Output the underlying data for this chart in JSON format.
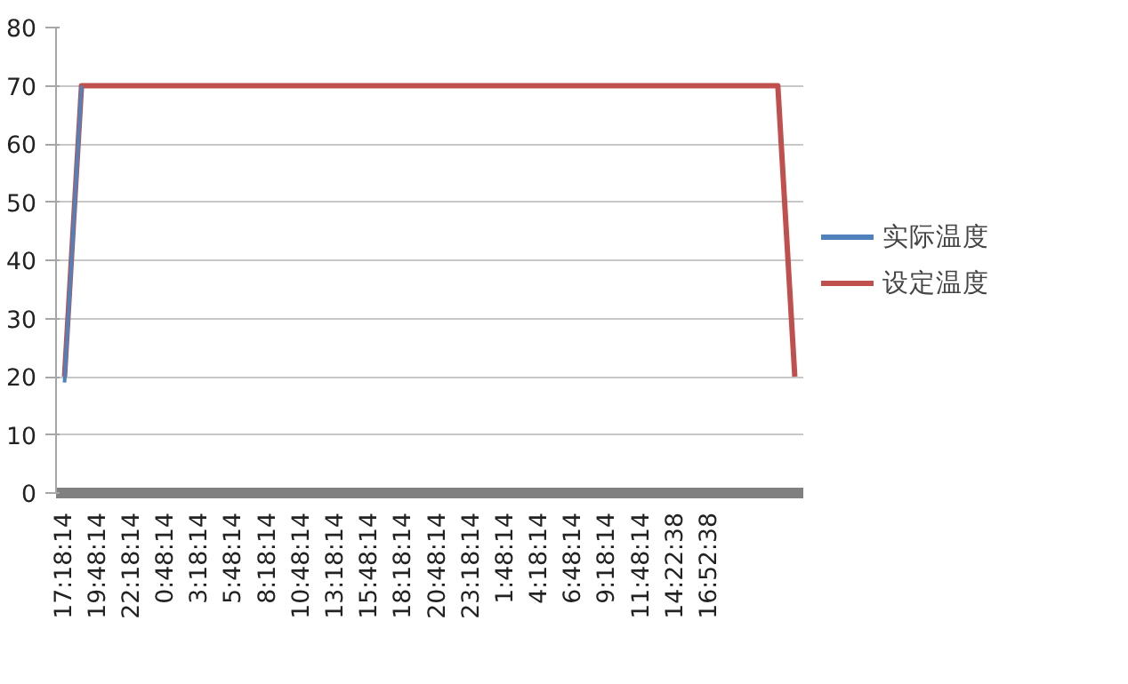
{
  "chart_data": {
    "type": "line",
    "categories": [
      "17:18:14",
      null,
      "19:48:14",
      null,
      "22:18:14",
      null,
      "0:48:14",
      null,
      "3:18:14",
      null,
      "5:48:14",
      null,
      "8:18:14",
      null,
      "10:48:14",
      null,
      "13:18:14",
      null,
      "15:48:14",
      null,
      "18:18:14",
      null,
      "20:48:14",
      null,
      "23:18:14",
      null,
      "1:48:14",
      null,
      "4:18:14",
      null,
      "6:48:14",
      null,
      "9:18:14",
      null,
      "11:48:14",
      null,
      "14:22:38",
      null,
      "16:52:38",
      null,
      null,
      null,
      null,
      null
    ],
    "series": [
      {
        "name": "实际温度",
        "color": "#4f81bd",
        "values": [
          19,
          70,
          null,
          null,
          null,
          null,
          null,
          null,
          null,
          null,
          null,
          null,
          null,
          null,
          null,
          null,
          null,
          null,
          null,
          null,
          null,
          null,
          null,
          null,
          null,
          null,
          null,
          null,
          null,
          null,
          null,
          null,
          null,
          null,
          null,
          null,
          null,
          null,
          null,
          null,
          null,
          null,
          null,
          null
        ]
      },
      {
        "name": "设定温度",
        "color": "#c0504d",
        "values": [
          20,
          70,
          70,
          70,
          70,
          70,
          70,
          70,
          70,
          70,
          70,
          70,
          70,
          70,
          70,
          70,
          70,
          70,
          70,
          70,
          70,
          70,
          70,
          70,
          70,
          70,
          70,
          70,
          70,
          70,
          70,
          70,
          70,
          70,
          70,
          70,
          70,
          70,
          70,
          70,
          70,
          70,
          70,
          20
        ]
      }
    ],
    "ylim": [
      0,
      80
    ],
    "yticks": [
      0,
      10,
      20,
      30,
      40,
      50,
      60,
      70,
      80
    ],
    "grid": "y",
    "legend": "right",
    "marker": "none",
    "line_style": "solid"
  }
}
